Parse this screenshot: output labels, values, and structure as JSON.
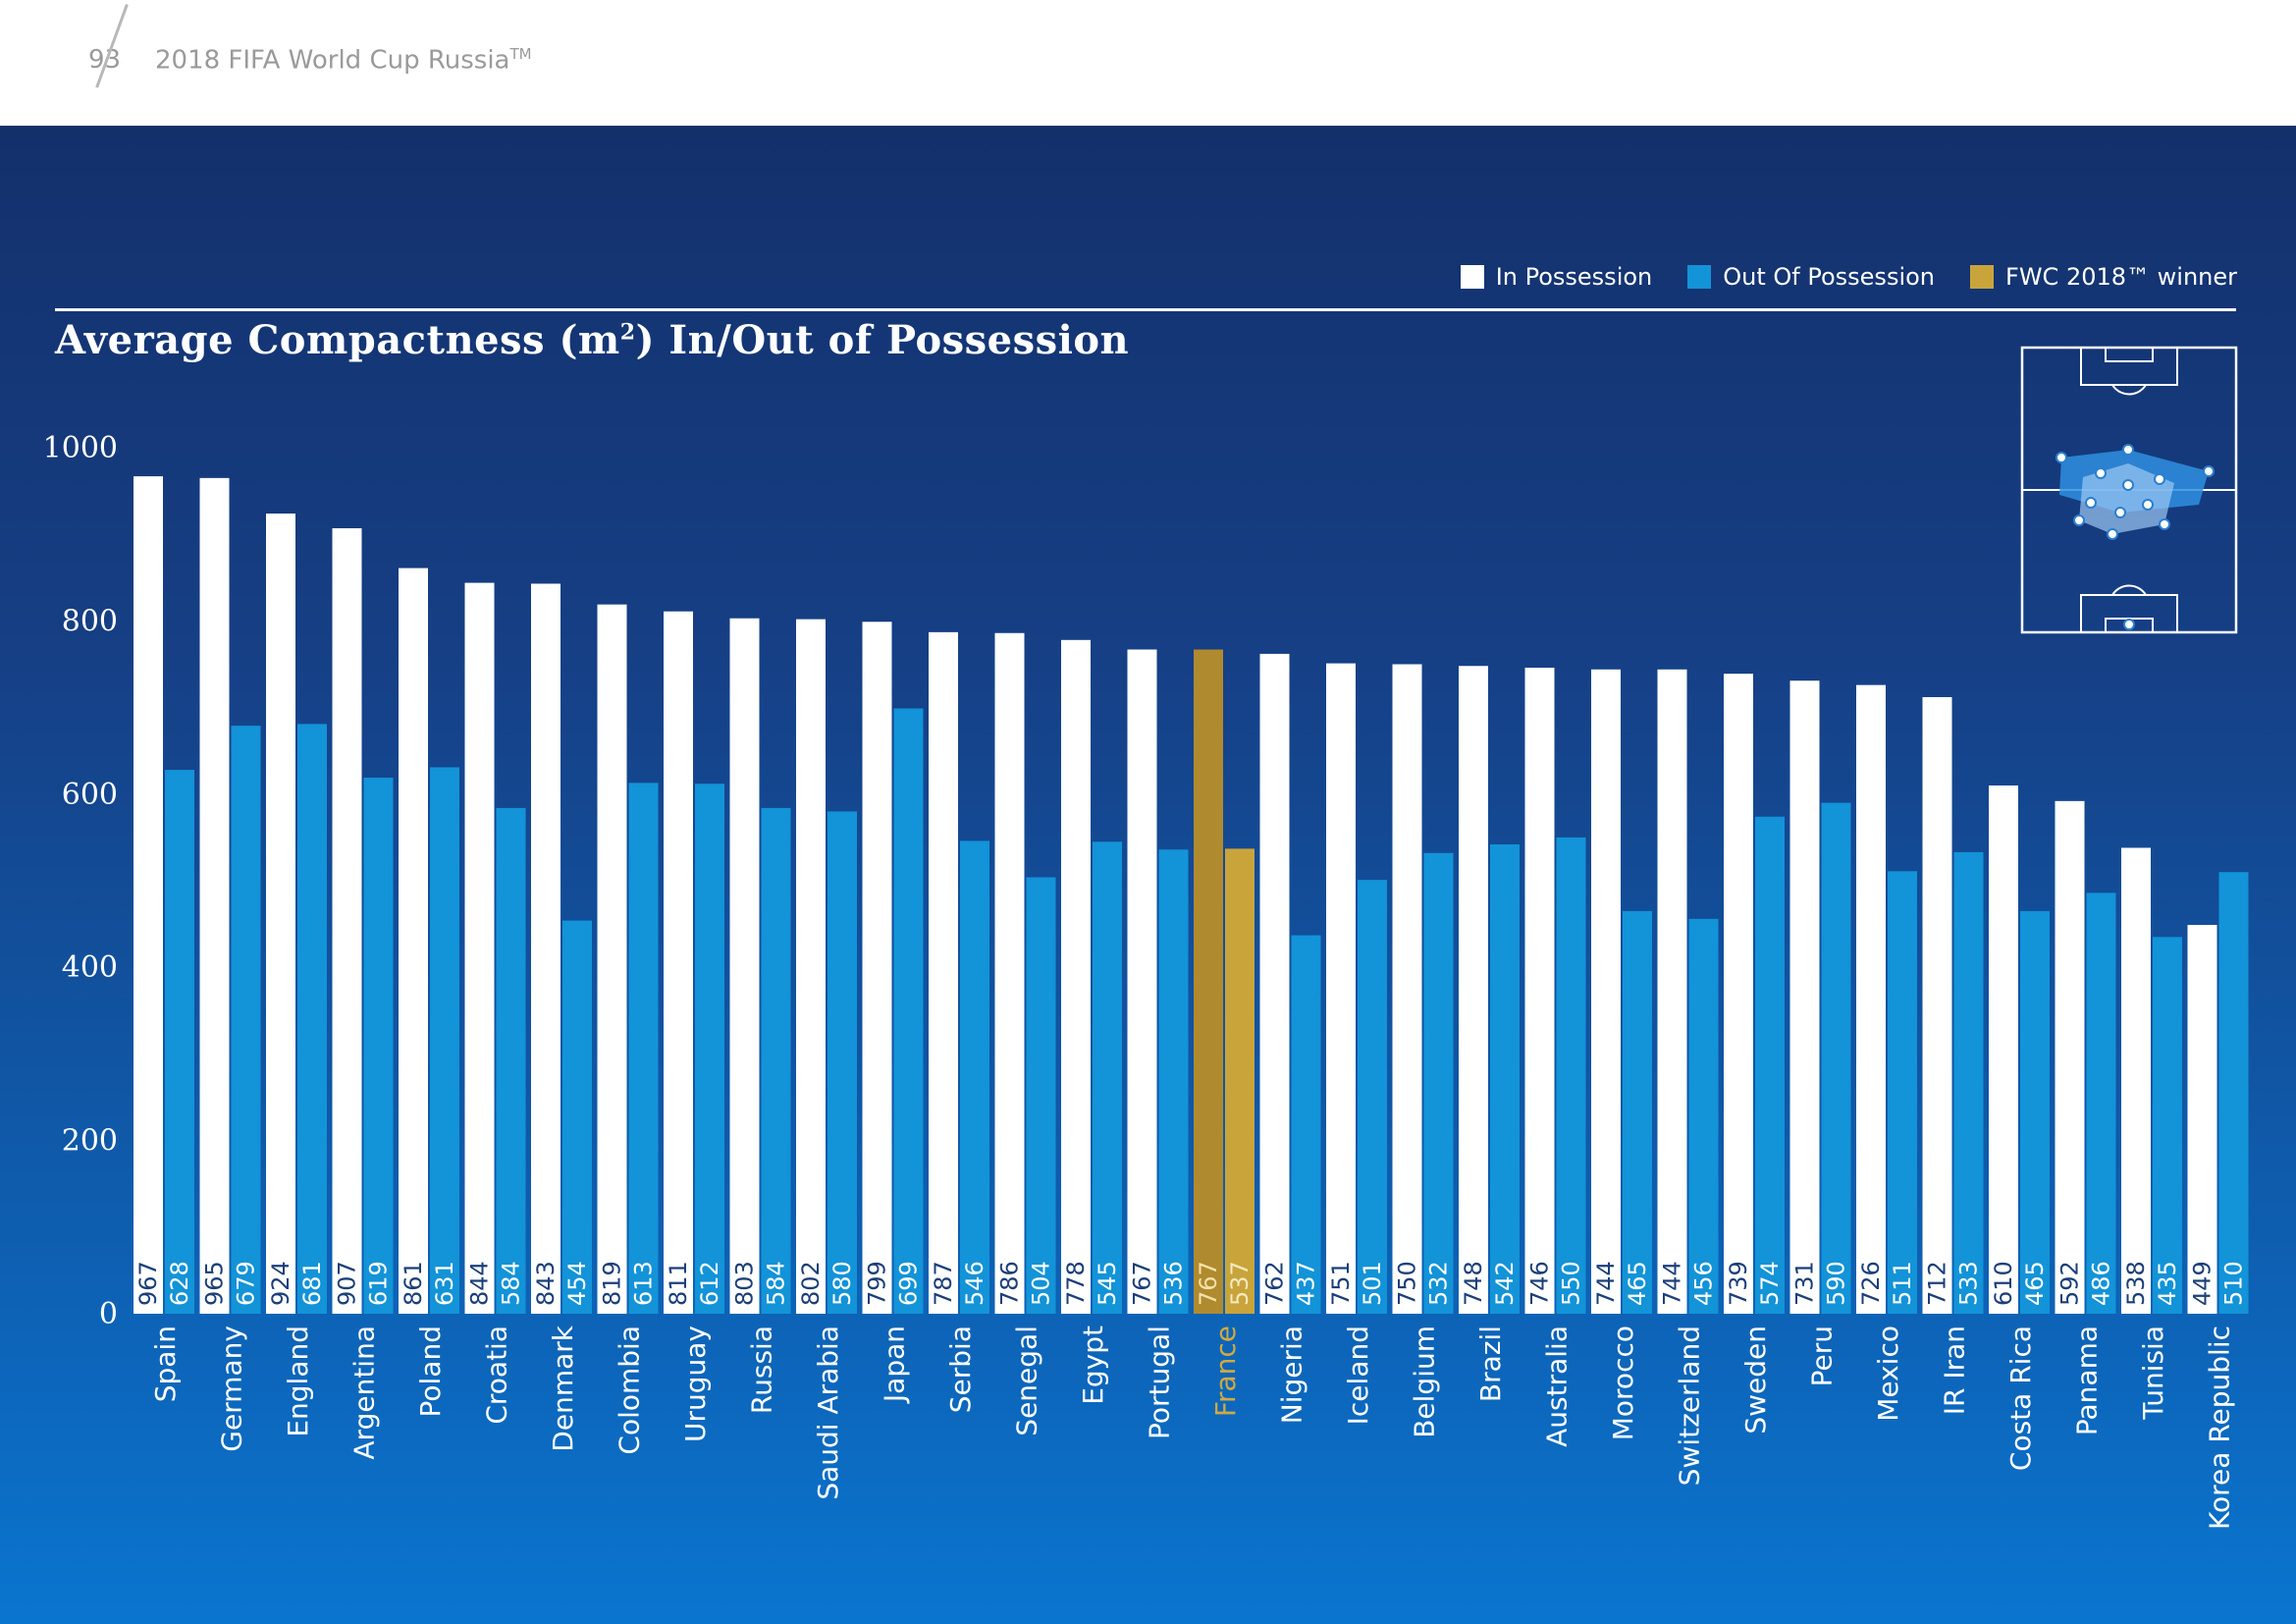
{
  "header": {
    "page_number": "93",
    "title": "2018 FIFA World Cup Russia",
    "title_mark": "TM"
  },
  "colors": {
    "in_possession": "#ffffff",
    "out_of_possession": "#1393d8",
    "winner_in": "#b08a2e",
    "winner_out": "#c9a43b",
    "winner_label": "#d2a93f"
  },
  "legend": {
    "in_label": "In Possession",
    "out_label": "Out Of Possession",
    "winner_label": "FWC 2018™ winner"
  },
  "chart_data": {
    "type": "bar",
    "title": "Average Compactness (m",
    "title_sup": "2",
    "title_rest": ") In/Out of Possession",
    "ylim": [
      0,
      1000
    ],
    "yticks": [
      0,
      200,
      400,
      600,
      800,
      1000
    ],
    "grid": false,
    "legend_position": "top-right",
    "highlight": "France",
    "categories": [
      "Spain",
      "Germany",
      "England",
      "Argentina",
      "Poland",
      "Croatia",
      "Denmark",
      "Colombia",
      "Uruguay",
      "Russia",
      "Saudi Arabia",
      "Japan",
      "Serbia",
      "Senegal",
      "Egypt",
      "Portugal",
      "France",
      "Nigeria",
      "Iceland",
      "Belgium",
      "Brazil",
      "Australia",
      "Morocco",
      "Switzerland",
      "Sweden",
      "Peru",
      "Mexico",
      "IR Iran",
      "Costa Rica",
      "Panama",
      "Tunisia",
      "Korea Republic"
    ],
    "series": [
      {
        "name": "In Possession",
        "values": [
          967,
          965,
          924,
          907,
          861,
          844,
          843,
          819,
          811,
          803,
          802,
          799,
          787,
          786,
          778,
          767,
          767,
          762,
          751,
          750,
          748,
          746,
          744,
          744,
          739,
          731,
          726,
          712,
          610,
          592,
          538,
          449
        ]
      },
      {
        "name": "Out Of Possession",
        "values": [
          628,
          679,
          681,
          619,
          631,
          584,
          454,
          613,
          612,
          584,
          580,
          699,
          546,
          504,
          545,
          536,
          537,
          437,
          501,
          532,
          542,
          550,
          465,
          456,
          574,
          590,
          511,
          533,
          465,
          486,
          435,
          510
        ]
      }
    ]
  }
}
